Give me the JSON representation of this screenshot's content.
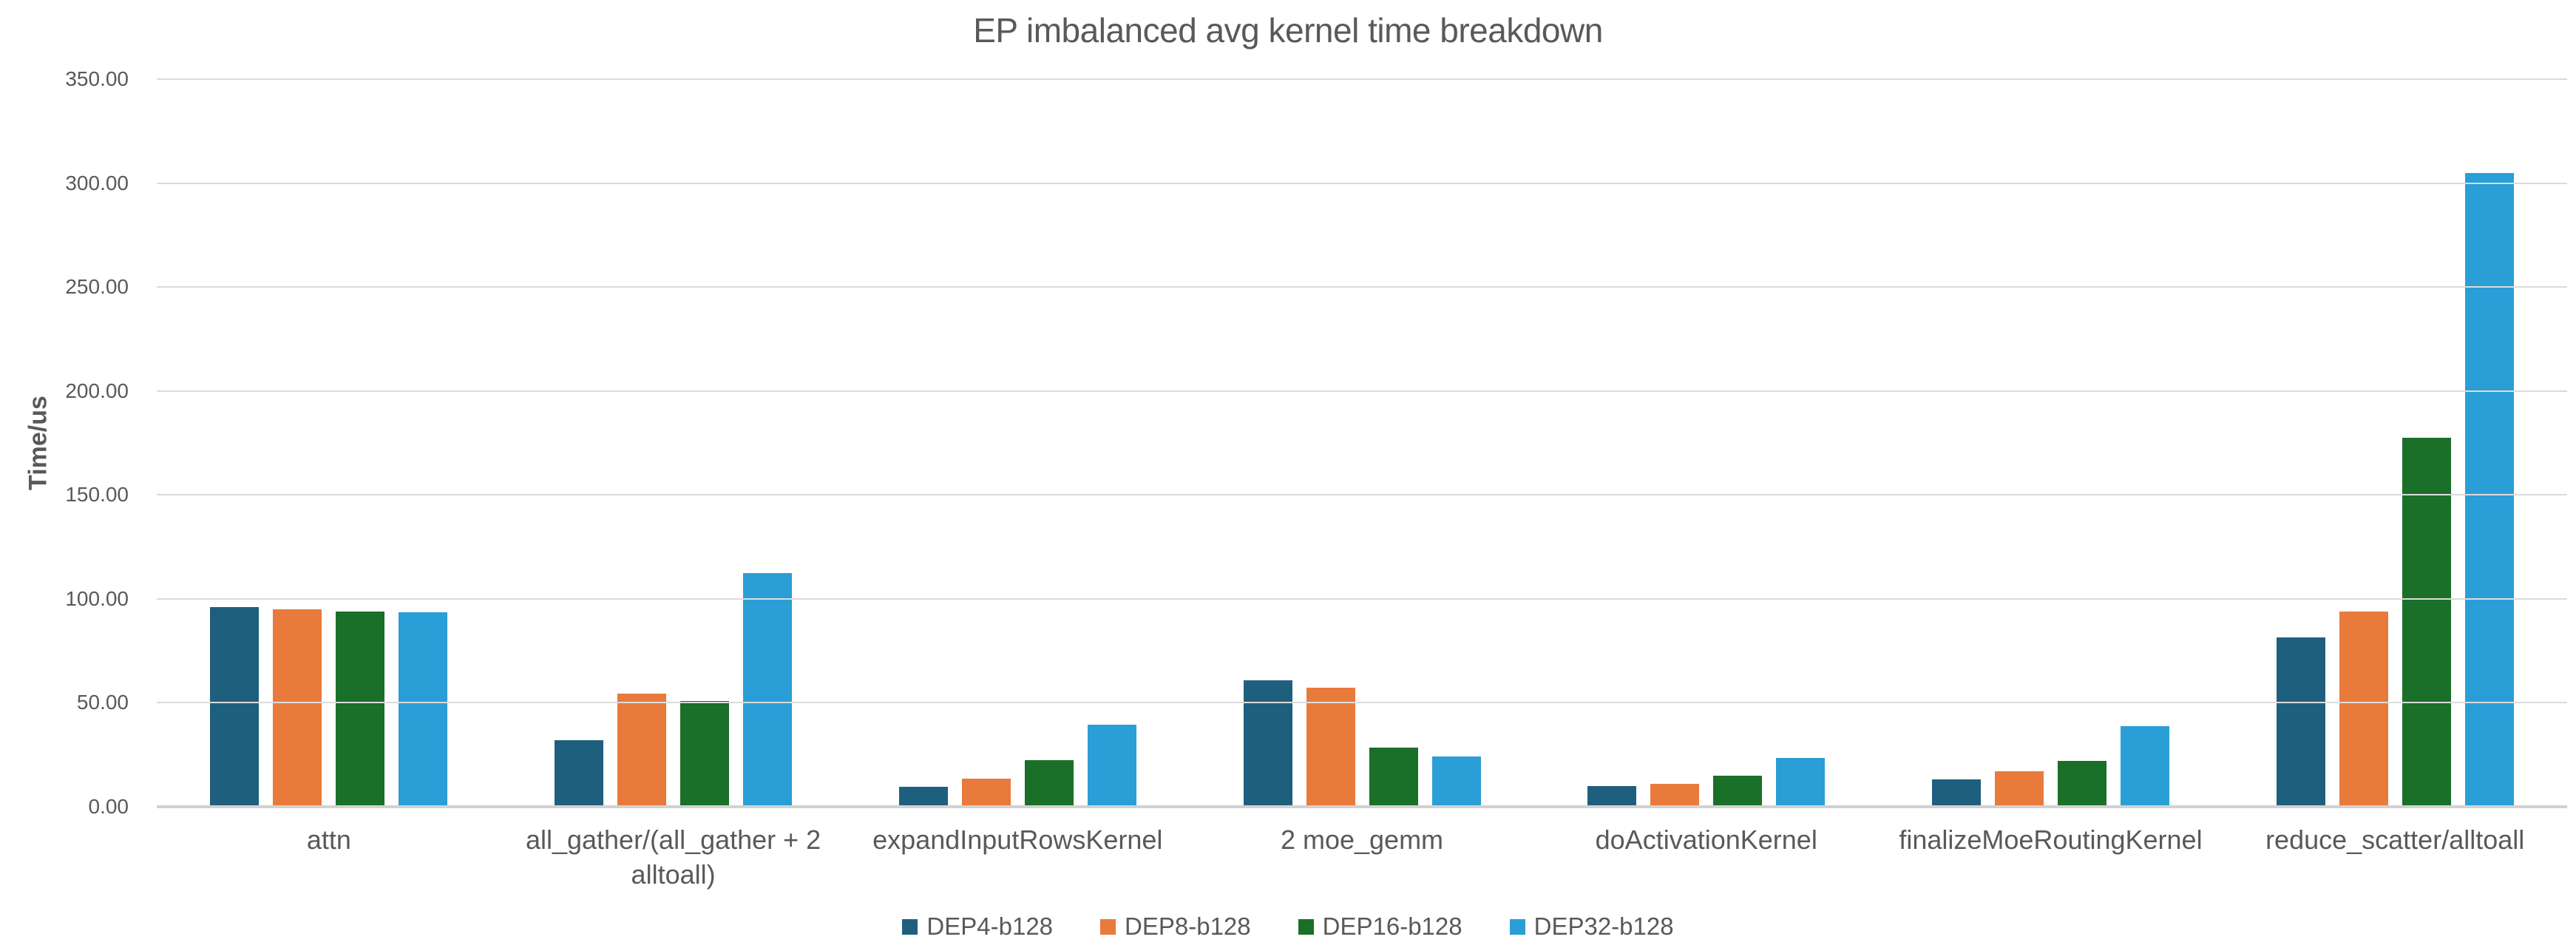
{
  "title": "EP imbalanced avg kernel time breakdown",
  "y_axis": {
    "label": "Time/us",
    "tick_labels": [
      "350.00",
      "300.00",
      "250.00",
      "200.00",
      "150.00",
      "100.00",
      "50.00",
      "0.00"
    ]
  },
  "chart_data": {
    "type": "bar",
    "title": "EP imbalanced avg kernel time breakdown",
    "xlabel": "",
    "ylabel": "Time/us",
    "ylim": [
      0,
      350
    ],
    "ytick_step": 50,
    "grid": true,
    "legend_position": "bottom",
    "categories": [
      "attn",
      "all_gather/(all_gather + 2\nalltoall)",
      "expandInputRowsKernel",
      "2 moe_gemm",
      "doActivationKernel",
      "finalizeMoeRoutingKernel",
      "reduce_scatter/alltoall"
    ],
    "series": [
      {
        "name": "DEP4-b128",
        "color": "#1F5F7E",
        "values": [
          96.0,
          32.0,
          9.5,
          61.0,
          10.0,
          13.0,
          81.3
        ]
      },
      {
        "name": "DEP8-b128",
        "color": "#E87A3C",
        "values": [
          94.8,
          54.3,
          13.6,
          57.3,
          11.2,
          17.2,
          93.9
        ]
      },
      {
        "name": "DEP16-b128",
        "color": "#1A6F29",
        "values": [
          93.8,
          51.0,
          22.3,
          28.6,
          15.0,
          22.2,
          177.5
        ]
      },
      {
        "name": "DEP32-b128",
        "color": "#2A9ED6",
        "values": [
          93.6,
          112.3,
          39.5,
          24.3,
          23.6,
          38.7,
          304.9
        ]
      }
    ]
  },
  "colors": {
    "gridline": "#dbdbdb",
    "axis_line": "#d2d2d2",
    "text": "#595959"
  }
}
